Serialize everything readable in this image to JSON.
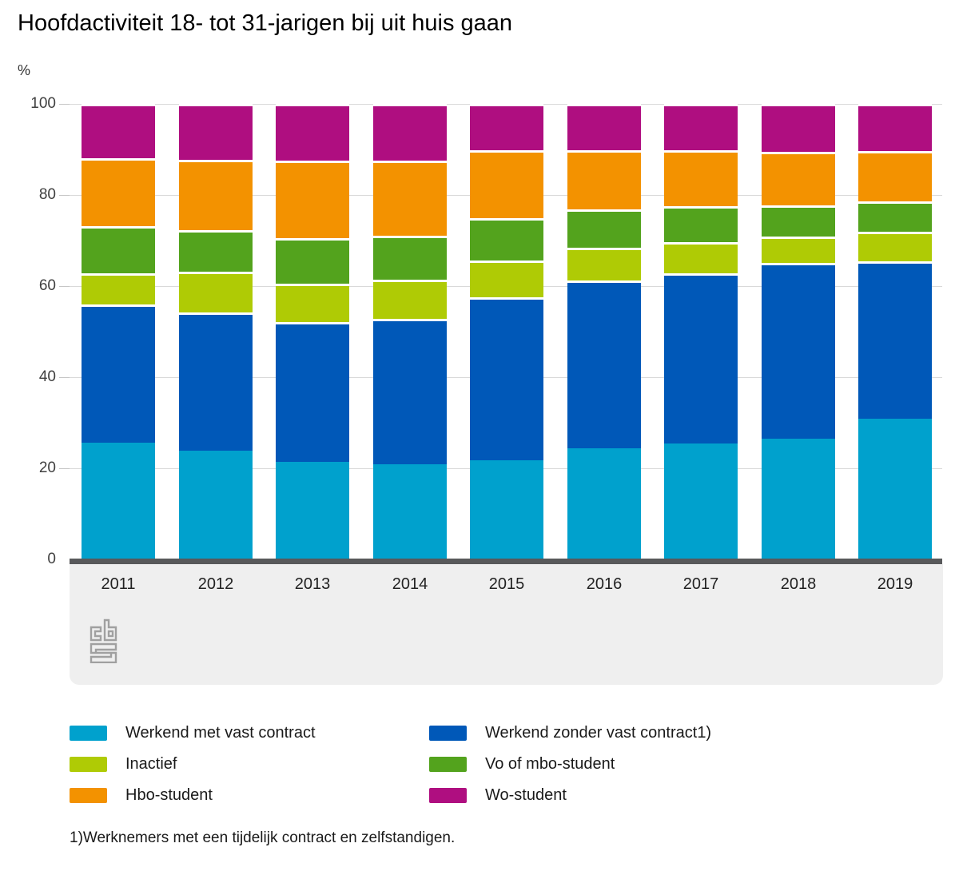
{
  "title": "Hoofdactiviteit 18- tot 31-jarigen bij uit huis gaan",
  "y_axis_unit": "%",
  "footnote": "1)Werknemers met een tijdelijk contract en zelfstandigen.",
  "logo_name": "cbs-logo",
  "colors": {
    "axis_line": "#58595b",
    "gridline": "#d9d9d9",
    "footer_band": "#efefef",
    "logo_gray": "#a0a0a0"
  },
  "chart_data": {
    "type": "bar",
    "stacked": true,
    "title": "Hoofdactiviteit 18- tot 31-jarigen bij uit huis gaan",
    "ylabel": "%",
    "ylim": [
      0,
      100
    ],
    "y_ticks": [
      0,
      20,
      40,
      60,
      80,
      100
    ],
    "grid": true,
    "legend_position": "bottom",
    "categories": [
      "2011",
      "2012",
      "2013",
      "2014",
      "2015",
      "2016",
      "2017",
      "2018",
      "2019"
    ],
    "series": [
      {
        "name": "Werkend met vast contract",
        "color": "#00a1cd",
        "values": [
          25.7,
          23.9,
          21.5,
          20.8,
          21.7,
          24.4,
          25.5,
          26.5,
          30.8
        ]
      },
      {
        "name": "Werkend zonder vast contract1)",
        "color": "#0058b8",
        "values": [
          30.2,
          30.3,
          30.7,
          32.0,
          35.8,
          36.8,
          37.4,
          38.6,
          34.6
        ]
      },
      {
        "name": "Inactief",
        "color": "#afcb05",
        "values": [
          7.0,
          8.9,
          8.4,
          8.6,
          8.2,
          7.3,
          6.8,
          5.8,
          6.6
        ]
      },
      {
        "name": "Vo of mbo-student",
        "color": "#53a31d",
        "values": [
          10.3,
          9.2,
          9.9,
          9.7,
          9.3,
          8.4,
          7.9,
          6.9,
          6.6
        ]
      },
      {
        "name": "Hbo-student",
        "color": "#f39200",
        "values": [
          14.9,
          15.5,
          17.0,
          16.5,
          14.8,
          13.0,
          12.2,
          11.7,
          11.0
        ]
      },
      {
        "name": "Wo-student",
        "color": "#af0e80",
        "values": [
          11.9,
          12.2,
          12.5,
          12.4,
          10.2,
          10.1,
          10.2,
          10.5,
          10.4
        ]
      }
    ]
  }
}
